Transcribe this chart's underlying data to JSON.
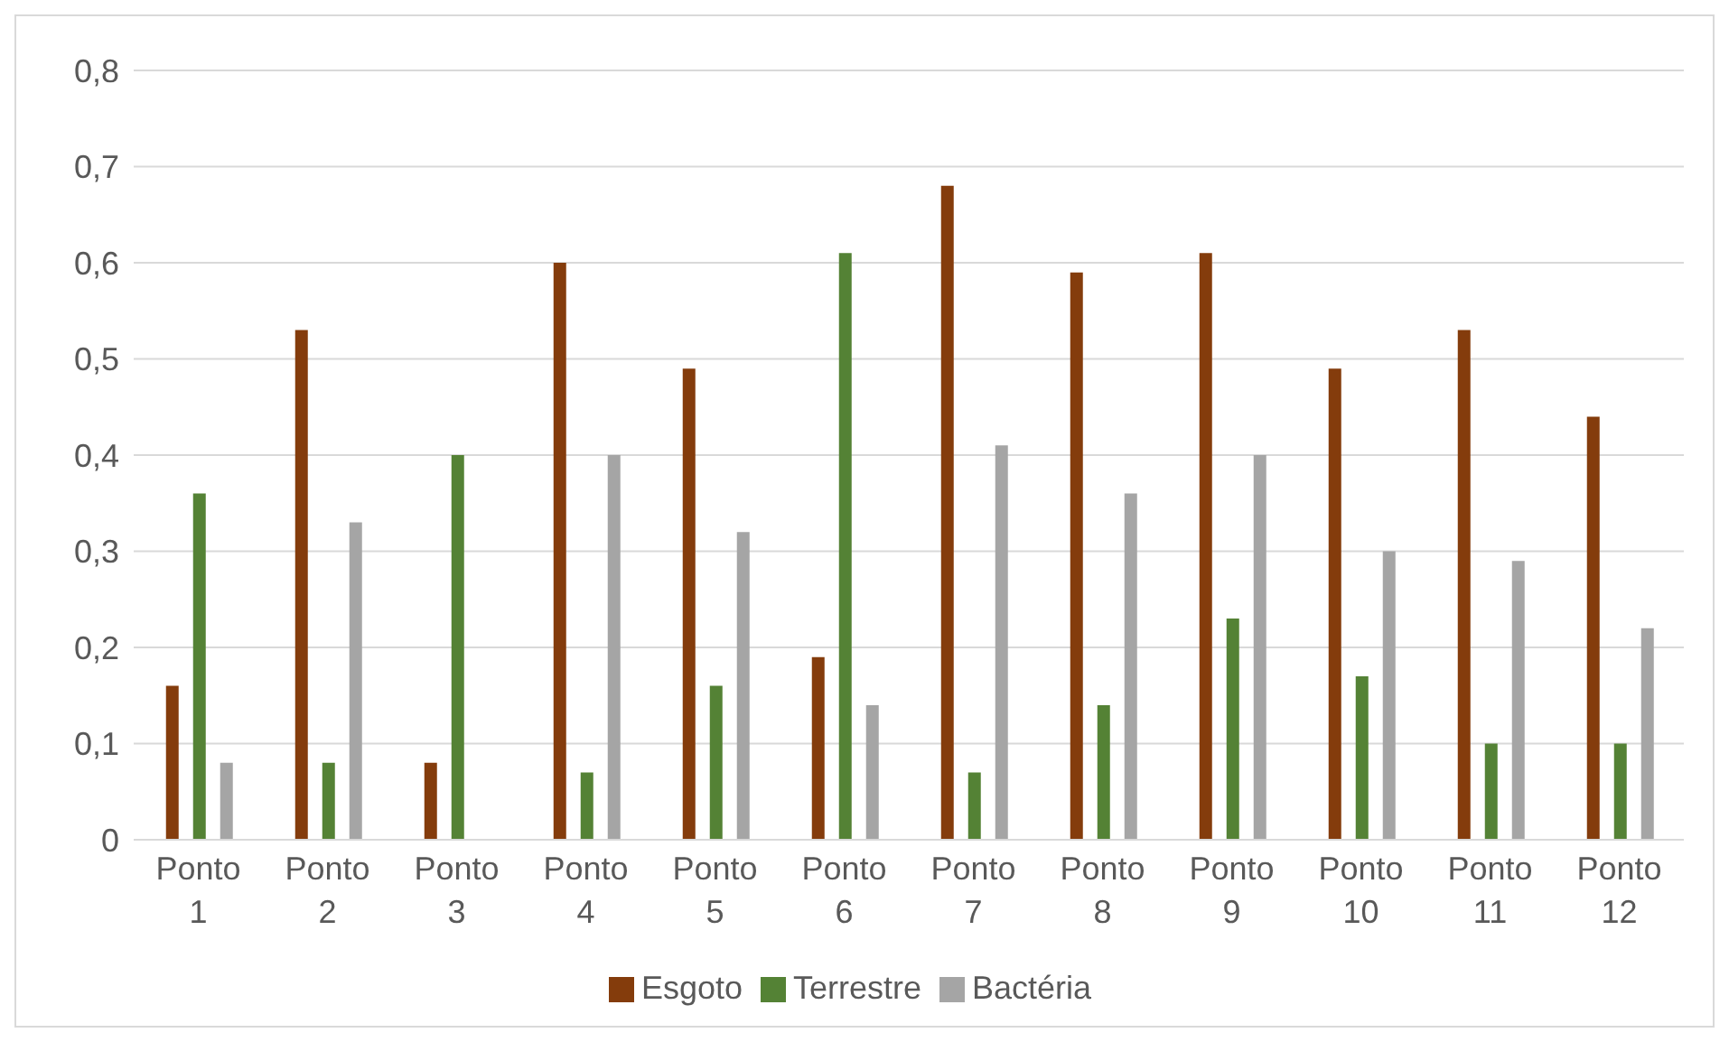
{
  "chart_data": {
    "type": "bar",
    "categories": [
      "Ponto 1",
      "Ponto 2",
      "Ponto 3",
      "Ponto 4",
      "Ponto 5",
      "Ponto 6",
      "Ponto 7",
      "Ponto 8",
      "Ponto 9",
      "Ponto 10",
      "Ponto 11",
      "Ponto 12"
    ],
    "series": [
      {
        "name": "Esgoto",
        "color": "#843c0c",
        "values": [
          0.16,
          0.53,
          0.08,
          0.6,
          0.49,
          0.19,
          0.68,
          0.59,
          0.61,
          0.49,
          0.53,
          0.44
        ]
      },
      {
        "name": "Terrestre",
        "color": "#548235",
        "values": [
          0.36,
          0.08,
          0.4,
          0.07,
          0.16,
          0.61,
          0.07,
          0.14,
          0.23,
          0.17,
          0.1,
          0.1
        ]
      },
      {
        "name": "Bactéria",
        "color": "#a5a5a5",
        "values": [
          0.08,
          0.33,
          null,
          0.4,
          0.32,
          0.14,
          0.41,
          0.36,
          0.4,
          0.3,
          0.29,
          0.22
        ]
      }
    ],
    "ylim": [
      0,
      0.8
    ],
    "yticks": [
      {
        "value": 0,
        "label": "0"
      },
      {
        "value": 0.1,
        "label": "0,1"
      },
      {
        "value": 0.2,
        "label": "0,2"
      },
      {
        "value": 0.3,
        "label": "0,3"
      },
      {
        "value": 0.4,
        "label": "0,4"
      },
      {
        "value": 0.5,
        "label": "0,5"
      },
      {
        "value": 0.6,
        "label": "0,6"
      },
      {
        "value": 0.7,
        "label": "0,7"
      },
      {
        "value": 0.8,
        "label": "0,8"
      }
    ],
    "grid": "y",
    "legend": "bottom"
  }
}
